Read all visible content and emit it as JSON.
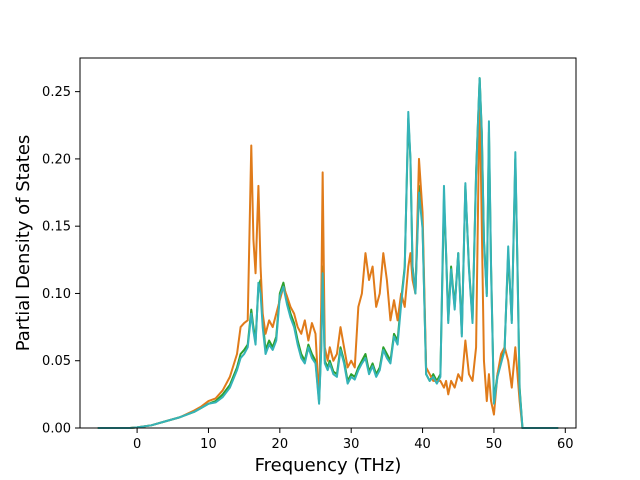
{
  "chart_data": {
    "type": "line",
    "title": "",
    "xlabel": "Frequency (THz)",
    "ylabel": "Partial Density of States",
    "xlim": [
      -8,
      61.5
    ],
    "ylim": [
      0,
      0.275
    ],
    "xticks": [
      0,
      10,
      20,
      30,
      40,
      50,
      60
    ],
    "xtick_labels": [
      "0",
      "10",
      "20",
      "30",
      "40",
      "50",
      "60"
    ],
    "yticks": [
      0.0,
      0.05,
      0.1,
      0.15,
      0.2,
      0.25
    ],
    "ytick_labels": [
      "0.00",
      "0.05",
      "0.10",
      "0.15",
      "0.20",
      "0.25"
    ],
    "grid": false,
    "legend": false,
    "series": [
      {
        "color": "#2ca02c",
        "x": [
          -5.5,
          -1,
          0,
          2,
          4,
          6,
          8,
          9,
          10,
          11,
          12,
          13,
          14,
          14.5,
          15,
          15.5,
          16,
          16.3,
          16.6,
          17,
          17.3,
          17.6,
          18,
          18.5,
          19,
          19.5,
          20,
          20.5,
          21,
          21.5,
          22,
          22.5,
          23,
          23.5,
          24,
          24.5,
          25,
          25.5,
          25.8,
          26,
          26.3,
          26.7,
          27,
          27.5,
          28,
          28.5,
          29,
          29.5,
          30,
          30.5,
          31,
          31.5,
          32,
          32.5,
          33,
          33.5,
          34,
          34.5,
          35,
          35.5,
          36,
          36.5,
          37,
          37.5,
          38,
          38.3,
          38.6,
          39,
          39.5,
          40,
          40.5,
          41,
          41.5,
          42,
          42.5,
          43,
          43.3,
          43.6,
          44,
          44.5,
          45,
          45.5,
          46,
          46.5,
          47,
          47.5,
          48,
          48.3,
          48.6,
          49,
          49.3,
          49.6,
          50,
          50.5,
          51,
          51.5,
          52,
          52.5,
          53,
          53.3,
          53.6,
          54,
          56,
          59
        ],
        "y": [
          0,
          0,
          0.0005,
          0.002,
          0.005,
          0.008,
          0.012,
          0.015,
          0.018,
          0.02,
          0.025,
          0.032,
          0.045,
          0.055,
          0.058,
          0.062,
          0.088,
          0.075,
          0.065,
          0.105,
          0.11,
          0.08,
          0.058,
          0.065,
          0.06,
          0.068,
          0.1,
          0.108,
          0.095,
          0.085,
          0.078,
          0.065,
          0.055,
          0.05,
          0.062,
          0.055,
          0.05,
          0.02,
          0.06,
          0.12,
          0.05,
          0.045,
          0.05,
          0.042,
          0.04,
          0.06,
          0.05,
          0.035,
          0.04,
          0.038,
          0.045,
          0.05,
          0.055,
          0.042,
          0.048,
          0.04,
          0.045,
          0.06,
          0.055,
          0.05,
          0.07,
          0.065,
          0.095,
          0.12,
          0.23,
          0.2,
          0.12,
          0.1,
          0.18,
          0.15,
          0.04,
          0.035,
          0.04,
          0.035,
          0.04,
          0.17,
          0.13,
          0.08,
          0.12,
          0.09,
          0.13,
          0.07,
          0.18,
          0.12,
          0.08,
          0.19,
          0.26,
          0.22,
          0.14,
          0.1,
          0.22,
          0.12,
          0.02,
          0.04,
          0.05,
          0.06,
          0.13,
          0.08,
          0.2,
          0.12,
          0.03,
          0,
          0,
          0
        ]
      },
      {
        "color": "#e07b1a",
        "x": [
          -5.5,
          -1,
          0,
          2,
          4,
          6,
          8,
          9,
          10,
          11,
          12,
          13,
          14,
          14.5,
          15,
          15.5,
          16,
          16.3,
          16.6,
          17,
          17.3,
          17.6,
          18,
          18.5,
          19,
          19.5,
          20,
          20.5,
          21,
          21.5,
          22,
          22.5,
          23,
          23.5,
          24,
          24.5,
          25,
          25.5,
          25.8,
          26,
          26.3,
          26.7,
          27,
          27.5,
          28,
          28.5,
          29,
          29.5,
          30,
          30.5,
          31,
          31.5,
          32,
          32.5,
          33,
          33.5,
          34,
          34.5,
          35,
          35.5,
          36,
          36.5,
          37,
          37.5,
          38,
          38.3,
          38.6,
          39,
          39.5,
          40,
          40.5,
          41,
          41.5,
          42,
          42.5,
          43,
          43.3,
          43.6,
          44,
          44.5,
          45,
          45.5,
          46,
          46.5,
          47,
          47.5,
          48,
          48.3,
          48.6,
          49,
          49.3,
          49.6,
          50,
          50.5,
          51,
          51.5,
          52,
          52.5,
          53,
          53.3,
          53.6,
          54,
          56,
          59
        ],
        "y": [
          0,
          0,
          0.0005,
          0.002,
          0.005,
          0.008,
          0.013,
          0.016,
          0.02,
          0.022,
          0.028,
          0.038,
          0.055,
          0.075,
          0.078,
          0.08,
          0.21,
          0.14,
          0.115,
          0.18,
          0.12,
          0.085,
          0.07,
          0.08,
          0.075,
          0.085,
          0.095,
          0.105,
          0.098,
          0.09,
          0.085,
          0.075,
          0.07,
          0.08,
          0.065,
          0.078,
          0.07,
          0.02,
          0.09,
          0.19,
          0.06,
          0.05,
          0.06,
          0.05,
          0.055,
          0.075,
          0.06,
          0.045,
          0.05,
          0.045,
          0.09,
          0.1,
          0.13,
          0.11,
          0.12,
          0.09,
          0.1,
          0.13,
          0.11,
          0.08,
          0.095,
          0.08,
          0.1,
          0.09,
          0.12,
          0.13,
          0.11,
          0.1,
          0.2,
          0.16,
          0.045,
          0.04,
          0.035,
          0.035,
          0.035,
          0.03,
          0.035,
          0.025,
          0.035,
          0.03,
          0.04,
          0.035,
          0.065,
          0.04,
          0.035,
          0.06,
          0.25,
          0.15,
          0.05,
          0.02,
          0.04,
          0.02,
          0.01,
          0.04,
          0.055,
          0.06,
          0.05,
          0.03,
          0.06,
          0.04,
          0.02,
          0,
          0,
          0
        ]
      },
      {
        "color": "#35b3b8",
        "x": [
          -5.5,
          -1,
          0,
          2,
          4,
          6,
          8,
          9,
          10,
          11,
          12,
          13,
          14,
          14.5,
          15,
          15.5,
          16,
          16.3,
          16.6,
          17,
          17.3,
          17.6,
          18,
          18.5,
          19,
          19.5,
          20,
          20.5,
          21,
          21.5,
          22,
          22.5,
          23,
          23.5,
          24,
          24.5,
          25,
          25.5,
          25.8,
          26,
          26.3,
          26.7,
          27,
          27.5,
          28,
          28.5,
          29,
          29.5,
          30,
          30.5,
          31,
          31.5,
          32,
          32.5,
          33,
          33.5,
          34,
          34.5,
          35,
          35.5,
          36,
          36.5,
          37,
          37.5,
          38,
          38.3,
          38.6,
          39,
          39.5,
          40,
          40.5,
          41,
          41.5,
          42,
          42.5,
          43,
          43.3,
          43.6,
          44,
          44.5,
          45,
          45.5,
          46,
          46.5,
          47,
          47.5,
          48,
          48.3,
          48.6,
          49,
          49.3,
          49.6,
          50,
          50.5,
          51,
          51.5,
          52,
          52.5,
          53,
          53.3,
          53.6,
          54,
          56,
          59
        ],
        "y": [
          0,
          0,
          0.0005,
          0.002,
          0.005,
          0.008,
          0.012,
          0.015,
          0.018,
          0.019,
          0.023,
          0.03,
          0.043,
          0.052,
          0.055,
          0.06,
          0.085,
          0.072,
          0.062,
          0.108,
          0.1,
          0.075,
          0.055,
          0.062,
          0.058,
          0.065,
          0.098,
          0.105,
          0.092,
          0.082,
          0.075,
          0.062,
          0.052,
          0.048,
          0.06,
          0.052,
          0.048,
          0.018,
          0.058,
          0.115,
          0.048,
          0.043,
          0.048,
          0.04,
          0.038,
          0.058,
          0.048,
          0.033,
          0.038,
          0.036,
          0.043,
          0.048,
          0.052,
          0.04,
          0.046,
          0.038,
          0.043,
          0.058,
          0.052,
          0.048,
          0.068,
          0.062,
          0.092,
          0.118,
          0.235,
          0.2,
          0.118,
          0.1,
          0.175,
          0.148,
          0.04,
          0.035,
          0.038,
          0.033,
          0.038,
          0.18,
          0.128,
          0.078,
          0.118,
          0.088,
          0.13,
          0.068,
          0.182,
          0.118,
          0.078,
          0.188,
          0.26,
          0.218,
          0.138,
          0.098,
          0.228,
          0.118,
          0.018,
          0.038,
          0.048,
          0.058,
          0.135,
          0.078,
          0.205,
          0.118,
          0.028,
          0,
          0,
          0
        ]
      }
    ]
  }
}
